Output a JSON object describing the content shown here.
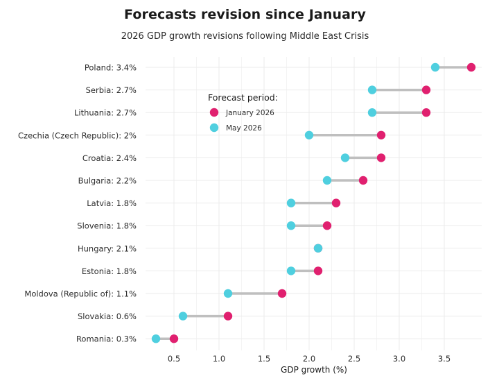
{
  "chart_data": {
    "type": "dumbbell",
    "title": "Forecasts revision since January",
    "subtitle": "2026 GDP growth revisions following Middle East Crisis",
    "xlabel": "GDP growth (%)",
    "ylabel": "",
    "xlim": [
      0.1,
      3.9
    ],
    "xticks": [
      0.5,
      1.0,
      1.5,
      2.0,
      2.5,
      3.0,
      3.5
    ],
    "xtick_labels": [
      "0.5",
      "1.0",
      "1.5",
      "2.0",
      "2.5",
      "3.0",
      "3.5"
    ],
    "grid": true,
    "legend": {
      "title": "Forecast period:",
      "position": "top-left inside plot",
      "entries": [
        "January 2026",
        "May 2026"
      ]
    },
    "categories": [
      "Poland: 3.4%",
      "Serbia: 2.7%",
      "Lithuania: 2.7%",
      "Czechia (Czech Republic): 2%",
      "Croatia: 2.4%",
      "Bulgaria: 2.2%",
      "Latvia: 1.8%",
      "Slovenia: 1.8%",
      "Hungary: 2.1%",
      "Estonia: 1.8%",
      "Moldova (Republic of): 1.1%",
      "Slovakia: 0.6%",
      "Romania: 0.3%"
    ],
    "series": [
      {
        "name": "January 2026",
        "color": "#e0206f",
        "values": [
          3.8,
          3.3,
          3.3,
          2.8,
          2.8,
          2.6,
          2.3,
          2.2,
          2.1,
          2.1,
          1.7,
          1.1,
          0.5
        ]
      },
      {
        "name": "May 2026",
        "color": "#4fcfdf",
        "values": [
          3.4,
          2.7,
          2.7,
          2.0,
          2.4,
          2.2,
          1.8,
          1.8,
          2.1,
          1.8,
          1.1,
          0.6,
          0.3
        ]
      }
    ],
    "connector_color": "#bfbfbf"
  }
}
